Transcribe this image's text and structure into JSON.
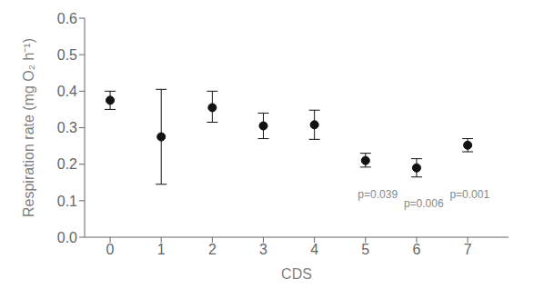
{
  "chart_data": {
    "type": "scatter",
    "x": [
      0,
      1,
      2,
      3,
      4,
      5,
      6,
      7
    ],
    "values": [
      0.375,
      0.275,
      0.355,
      0.305,
      0.308,
      0.21,
      0.19,
      0.252
    ],
    "yerr_lower": [
      0.025,
      0.13,
      0.04,
      0.035,
      0.04,
      0.018,
      0.025,
      0.018
    ],
    "yerr_upper": [
      0.025,
      0.13,
      0.045,
      0.035,
      0.04,
      0.02,
      0.025,
      0.018
    ],
    "color": "#111111",
    "annotations": [
      {
        "x": 4.85,
        "y": 0.108,
        "text": "p=0.039"
      },
      {
        "x": 5.75,
        "y": 0.082,
        "text": "p=0.006"
      },
      {
        "x": 6.65,
        "y": 0.108,
        "text": "p=0.001"
      }
    ],
    "xlabel": "CDS",
    "ylabel": "Respiration rate (mg O₂ h⁻¹)",
    "xlim": [
      -0.5,
      7.8
    ],
    "xticks": [
      0,
      1,
      2,
      3,
      4,
      5,
      6,
      7
    ],
    "ylim": [
      0.0,
      0.6
    ],
    "yticks": [
      {
        "value": 0.0,
        "label": "0.0"
      },
      0.1,
      0.2,
      0.3,
      0.4,
      0.5,
      0.6
    ],
    "grid": false
  }
}
